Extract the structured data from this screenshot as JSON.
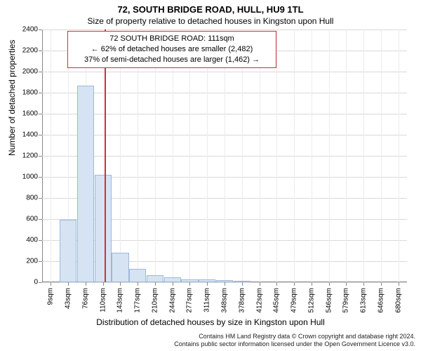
{
  "title_main": "72, SOUTH BRIDGE ROAD, HULL, HU9 1TL",
  "title_sub": "Size of property relative to detached houses in Kingston upon Hull",
  "annotation": {
    "line1": "72 SOUTH BRIDGE ROAD: 111sqm",
    "line2": "← 62% of detached houses are smaller (2,482)",
    "line3": "37% of semi-detached houses are larger (1,462) →",
    "border_color": "#cc3333"
  },
  "chart": {
    "type": "histogram",
    "ylabel": "Number of detached properties",
    "xlabel": "Distribution of detached houses by size in Kingston upon Hull",
    "ylim": [
      0,
      2400
    ],
    "ytick_step": 200,
    "x_bin_width_sqm": 33,
    "x_start_sqm": 9,
    "x_categories": [
      "9sqm",
      "43sqm",
      "76sqm",
      "110sqm",
      "143sqm",
      "177sqm",
      "210sqm",
      "244sqm",
      "277sqm",
      "311sqm",
      "348sqm",
      "378sqm",
      "412sqm",
      "445sqm",
      "479sqm",
      "512sqm",
      "546sqm",
      "579sqm",
      "613sqm",
      "646sqm",
      "680sqm"
    ],
    "values": [
      0,
      595,
      1870,
      1020,
      280,
      130,
      70,
      45,
      30,
      25,
      18,
      12,
      0,
      0,
      0,
      0,
      0,
      0,
      0,
      0,
      0
    ],
    "bar_fill": "#d6e3f3",
    "bar_border": "#9fb8d9",
    "marker_value_sqm": 111,
    "marker_color": "#cc3333",
    "background": "#ffffff",
    "grid_color": "#d9d9d9",
    "axis_color": "#888888",
    "label_fontsize": 12,
    "tick_fontsize": 10,
    "title_fontsize": 13
  },
  "footer": {
    "line1": "Contains HM Land Registry data © Crown copyright and database right 2024.",
    "line2": "Contains public sector information licensed under the Open Government Licence v3.0."
  }
}
